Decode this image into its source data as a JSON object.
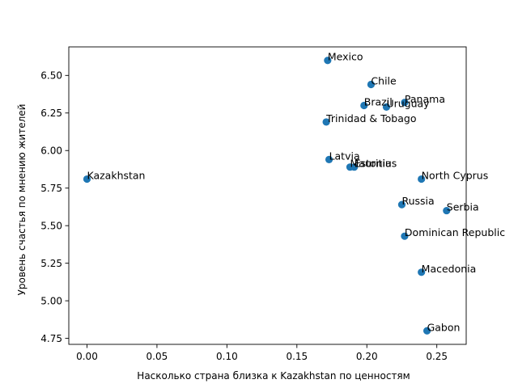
{
  "chart_data": {
    "type": "scatter",
    "xlabel": "Насколько страна близка к Kazakhstan по ценностям",
    "ylabel": "Уровень счастья по мнению жителей",
    "xlim": [
      -0.013,
      0.271
    ],
    "ylim": [
      4.71,
      6.69
    ],
    "x_ticks": [
      0.0,
      0.05,
      0.1,
      0.15,
      0.2,
      0.25
    ],
    "y_ticks": [
      4.75,
      5.0,
      5.25,
      5.5,
      5.75,
      6.0,
      6.25,
      6.5
    ],
    "grid": false,
    "point_color": "#1f77b4",
    "points": [
      {
        "label": "Kazakhstan",
        "x": 0.0,
        "y": 5.81
      },
      {
        "label": "Mexico",
        "x": 0.172,
        "y": 6.6
      },
      {
        "label": "Chile",
        "x": 0.203,
        "y": 6.44
      },
      {
        "label": "Panama",
        "x": 0.227,
        "y": 6.32
      },
      {
        "label": "Brazil",
        "x": 0.198,
        "y": 6.3
      },
      {
        "label": "Uruguay",
        "x": 0.214,
        "y": 6.29
      },
      {
        "label": "Trinidad & Tobago",
        "x": 0.171,
        "y": 6.19
      },
      {
        "label": "Latvia",
        "x": 0.173,
        "y": 5.94
      },
      {
        "label": "Mauritius",
        "x": 0.188,
        "y": 5.89
      },
      {
        "label": "Estonia",
        "x": 0.191,
        "y": 5.89
      },
      {
        "label": "North Cyprus",
        "x": 0.239,
        "y": 5.81
      },
      {
        "label": "Russia",
        "x": 0.225,
        "y": 5.64
      },
      {
        "label": "Serbia",
        "x": 0.257,
        "y": 5.6
      },
      {
        "label": "Dominican Republic",
        "x": 0.227,
        "y": 5.43
      },
      {
        "label": "Macedonia",
        "x": 0.239,
        "y": 5.19
      },
      {
        "label": "Gabon",
        "x": 0.243,
        "y": 4.8
      }
    ]
  }
}
